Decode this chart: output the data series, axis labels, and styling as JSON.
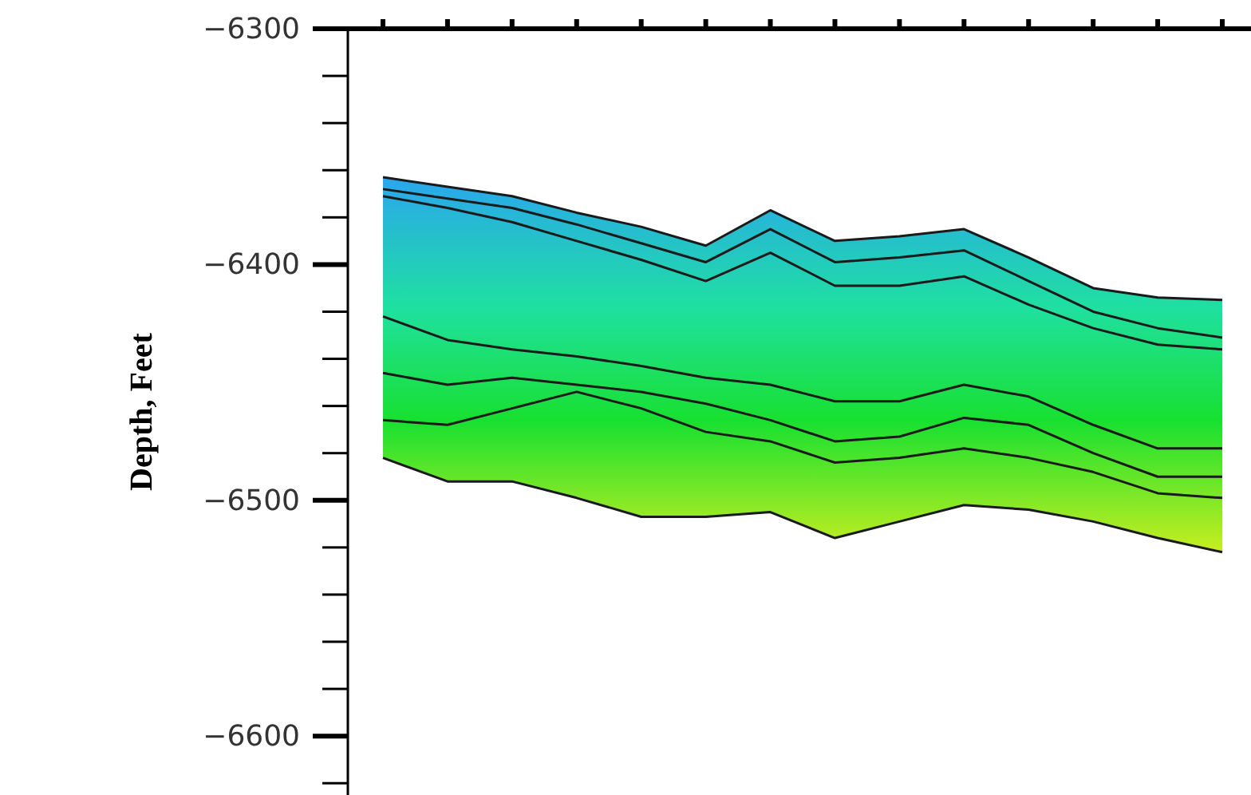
{
  "chart_data": {
    "type": "line",
    "ylabel": "Depth, Feet",
    "categories": [
      null,
      null,
      null,
      null,
      null,
      null,
      null,
      null,
      null,
      null,
      null,
      null,
      null,
      null
    ],
    "ylim": [
      -6625,
      -6300
    ],
    "yticks": [
      {
        "value": -6620,
        "label": null
      },
      -6600,
      {
        "value": -6580,
        "label": null
      },
      {
        "value": -6560,
        "label": null
      },
      {
        "value": -6540,
        "label": null
      },
      {
        "value": -6520,
        "label": null
      },
      -6500,
      {
        "value": -6480,
        "label": null
      },
      {
        "value": -6460,
        "label": null
      },
      {
        "value": -6440,
        "label": null
      },
      {
        "value": -6420,
        "label": null
      },
      -6400,
      {
        "value": -6380,
        "label": null
      },
      {
        "value": -6360,
        "label": null
      },
      {
        "value": -6340,
        "label": null
      },
      {
        "value": -6320,
        "label": null
      },
      -6300
    ],
    "tick_labels": "y",
    "marker": "none",
    "line_style": "solid",
    "grid": false,
    "series": [
      {
        "color": "#1a1a1a",
        "values": [
          -6363,
          -6367,
          -6371,
          -6378,
          -6384,
          -6392,
          -6377,
          -6390,
          -6388,
          -6385,
          -6397,
          -6410,
          -6414,
          -6415
        ],
        "upper": [
          -6363,
          -6367,
          -6371,
          -6378,
          -6384,
          -6392,
          -6377,
          -6390,
          -6388,
          -6385,
          -6397,
          -6410,
          -6414,
          -6415
        ],
        "lower": [
          -6482,
          -6492,
          -6492,
          -6499,
          -6507,
          -6507,
          -6505,
          -6516,
          -6509,
          -6502,
          -6504,
          -6509,
          -6516,
          -6522
        ]
      },
      {
        "color": "#1a1a1a",
        "values": [
          -6368,
          -6372,
          -6376,
          -6383,
          -6391,
          -6399,
          -6385,
          -6399,
          -6397,
          -6394,
          -6407,
          -6420,
          -6427,
          -6431
        ]
      },
      {
        "color": "#1a1a1a",
        "values": [
          -6371,
          -6376,
          -6382,
          -6390,
          -6398,
          -6407,
          -6395,
          -6409,
          -6409,
          -6405,
          -6417,
          -6427,
          -6434,
          -6436
        ]
      },
      {
        "color": "#1a1a1a",
        "values": [
          -6422,
          -6432,
          -6436,
          -6439,
          -6443,
          -6448,
          -6451,
          -6458,
          -6458,
          -6451,
          -6456,
          -6468,
          -6478,
          -6478
        ]
      },
      {
        "color": "#1a1a1a",
        "values": [
          -6446,
          -6451,
          -6448,
          -6451,
          -6454,
          -6459,
          -6466,
          -6475,
          -6473,
          -6465,
          -6468,
          -6480,
          -6490,
          -6490
        ]
      },
      {
        "color": "#1a1a1a",
        "values": [
          -6466,
          -6468,
          -6461,
          -6454,
          -6461,
          -6471,
          -6475,
          -6484,
          -6482,
          -6478,
          -6482,
          -6488,
          -6497,
          -6499
        ]
      },
      {
        "color": "#1a1a1a",
        "values": [
          -6482,
          -6492,
          -6492,
          -6499,
          -6507,
          -6507,
          -6505,
          -6516,
          -6509,
          -6502,
          -6504,
          -6509,
          -6516,
          -6522
        ]
      }
    ]
  }
}
